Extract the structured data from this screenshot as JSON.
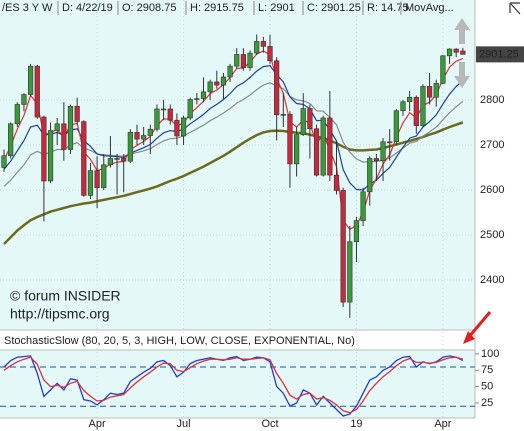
{
  "chart_data": [
    {
      "type": "candlestick",
      "header": [
        "/ES 3 Y W",
        "D: 4/22/19",
        "O: 2908.75",
        "H: 2915.75",
        "L: 2901",
        "C: 2901.25",
        "R: 14.75",
        "MovAvg..."
      ],
      "watermark": [
        "© forum INSIDER",
        "http://tipsmc.org"
      ],
      "categories": [
        null,
        null,
        null,
        null,
        null,
        null,
        null,
        null,
        null,
        null,
        null,
        null,
        null,
        null,
        "Apr",
        null,
        null,
        null,
        null,
        null,
        null,
        null,
        null,
        null,
        null,
        null,
        null,
        "Jul",
        null,
        null,
        null,
        null,
        null,
        null,
        null,
        null,
        null,
        null,
        null,
        null,
        "Oct",
        null,
        null,
        null,
        null,
        null,
        null,
        null,
        null,
        null,
        null,
        null,
        null,
        "19",
        null,
        null,
        null,
        null,
        null,
        null,
        null,
        null,
        null,
        null,
        null,
        null,
        "Apr",
        null,
        null,
        null
      ],
      "open": [
        2650,
        2676,
        2747,
        2790,
        2812,
        2875,
        2762,
        2620,
        2732,
        2747,
        2690,
        2786,
        2752,
        2588,
        2643,
        2605,
        2656,
        2670,
        2670,
        2664,
        2728,
        2713,
        2721,
        2735,
        2780,
        2780,
        2755,
        2720,
        2760,
        2801,
        2803,
        2818,
        2840,
        2833,
        2851,
        2875,
        2901,
        2872,
        2904,
        2930,
        2919,
        2887,
        2767,
        2768,
        2658,
        2723,
        2781,
        2736,
        2633,
        2760,
        2633,
        2599,
        2351,
        2485,
        2532,
        2596,
        2670,
        2665,
        2707,
        2707,
        2776,
        2796,
        2806,
        2743,
        2830,
        2806,
        2837,
        2898,
        2913,
        2908.75
      ],
      "high": [
        2690,
        2750,
        2795,
        2815,
        2880,
        2878,
        2765,
        2750,
        2760,
        2795,
        2790,
        2805,
        2755,
        2660,
        2675,
        2680,
        2720,
        2680,
        2680,
        2735,
        2745,
        2740,
        2745,
        2790,
        2800,
        2790,
        2770,
        2765,
        2805,
        2815,
        2850,
        2845,
        2865,
        2860,
        2880,
        2915,
        2915,
        2910,
        2945,
        2940,
        2945,
        2895,
        2815,
        2775,
        2740,
        2815,
        2790,
        2745,
        2765,
        2820,
        2710,
        2605,
        2520,
        2540,
        2605,
        2675,
        2680,
        2715,
        2735,
        2780,
        2800,
        2820,
        2810,
        2835,
        2860,
        2845,
        2900,
        2915,
        2915,
        2915.75
      ],
      "low": [
        2640,
        2670,
        2740,
        2775,
        2808,
        2758,
        2530,
        2615,
        2700,
        2665,
        2680,
        2745,
        2585,
        2580,
        2560,
        2600,
        2650,
        2590,
        2595,
        2660,
        2700,
        2700,
        2680,
        2730,
        2755,
        2745,
        2700,
        2700,
        2755,
        2790,
        2795,
        2800,
        2825,
        2800,
        2840,
        2870,
        2865,
        2865,
        2900,
        2905,
        2880,
        2710,
        2740,
        2605,
        2630,
        2720,
        2670,
        2630,
        2630,
        2620,
        2590,
        2340,
        2316,
        2440,
        2520,
        2565,
        2620,
        2620,
        2665,
        2700,
        2765,
        2775,
        2725,
        2740,
        2790,
        2785,
        2835,
        2880,
        2895,
        2901
      ],
      "close": [
        2676,
        2747,
        2790,
        2812,
        2875,
        2762,
        2620,
        2732,
        2747,
        2690,
        2786,
        2752,
        2588,
        2643,
        2605,
        2656,
        2670,
        2670,
        2664,
        2728,
        2713,
        2721,
        2735,
        2780,
        2780,
        2755,
        2720,
        2760,
        2801,
        2803,
        2818,
        2840,
        2833,
        2851,
        2875,
        2901,
        2872,
        2904,
        2930,
        2919,
        2887,
        2767,
        2768,
        2658,
        2723,
        2781,
        2736,
        2633,
        2760,
        2633,
        2599,
        2351,
        2485,
        2532,
        2596,
        2670,
        2665,
        2707,
        2707,
        2776,
        2796,
        2806,
        2743,
        2830,
        2806,
        2837,
        2898,
        2913,
        2906,
        2901.25
      ],
      "up_color": "#3a9a3a",
      "down_color": "#c8283c",
      "series": [
        {
          "color": "#6b6b1e",
          "values": [
            2480,
            2495,
            2510,
            2522,
            2533,
            2540,
            2546,
            2552,
            2556,
            2560,
            2564,
            2567,
            2570,
            2572,
            2575,
            2578,
            2581,
            2584,
            2587,
            2591,
            2595,
            2599,
            2603,
            2608,
            2614,
            2620,
            2625,
            2631,
            2638,
            2645,
            2652,
            2660,
            2668,
            2676,
            2685,
            2695,
            2705,
            2714,
            2722,
            2728,
            2731,
            2732,
            2731,
            2729,
            2727,
            2726,
            2723,
            2719,
            2715,
            2710,
            2704,
            2696,
            2690,
            2688,
            2688,
            2689,
            2690,
            2693,
            2697,
            2701,
            2705,
            2709,
            2713,
            2718,
            2723,
            2728,
            2734,
            2740,
            2745,
            2750
          ]
        },
        {
          "color": "#8a8a8a",
          "values": [
            2608,
            2622,
            2639,
            2656,
            2678,
            2686,
            2679,
            2684,
            2690,
            2690,
            2700,
            2705,
            2693,
            2688,
            2680,
            2678,
            2677,
            2676,
            2675,
            2680,
            2683,
            2687,
            2692,
            2701,
            2709,
            2714,
            2715,
            2720,
            2728,
            2736,
            2744,
            2754,
            2762,
            2771,
            2781,
            2793,
            2801,
            2811,
            2823,
            2833,
            2838,
            2831,
            2825,
            2808,
            2800,
            2798,
            2792,
            2776,
            2775,
            2761,
            2745,
            2706,
            2684,
            2669,
            2662,
            2663,
            2663,
            2667,
            2671,
            2682,
            2693,
            2704,
            2708,
            2720,
            2729,
            2740,
            2756,
            2772,
            2785,
            2797
          ]
        },
        {
          "color": "#1f3fa0",
          "values": [
            2646,
            2664,
            2687,
            2710,
            2740,
            2744,
            2722,
            2724,
            2728,
            2721,
            2733,
            2736,
            2709,
            2697,
            2680,
            2676,
            2675,
            2674,
            2672,
            2682,
            2688,
            2694,
            2701,
            2715,
            2727,
            2732,
            2730,
            2735,
            2747,
            2757,
            2768,
            2781,
            2790,
            2801,
            2814,
            2830,
            2838,
            2850,
            2864,
            2874,
            2876,
            2856,
            2840,
            2807,
            2792,
            2790,
            2780,
            2754,
            2755,
            2733,
            2709,
            2645,
            2616,
            2601,
            2600,
            2613,
            2622,
            2637,
            2650,
            2673,
            2695,
            2715,
            2720,
            2740,
            2752,
            2767,
            2791,
            2813,
            2830,
            2843
          ]
        },
        {
          "color": "#e0303a",
          "values": [
            2666,
            2698,
            2735,
            2766,
            2810,
            2791,
            2723,
            2727,
            2735,
            2717,
            2745,
            2748,
            2684,
            2668,
            2643,
            2648,
            2657,
            2662,
            2663,
            2689,
            2699,
            2708,
            2719,
            2743,
            2758,
            2757,
            2742,
            2749,
            2770,
            2783,
            2797,
            2814,
            2822,
            2834,
            2850,
            2870,
            2871,
            2884,
            2902,
            2909,
            2900,
            2847,
            2815,
            2752,
            2740,
            2756,
            2748,
            2702,
            2725,
            2688,
            2652,
            2532,
            2513,
            2521,
            2551,
            2599,
            2625,
            2658,
            2678,
            2717,
            2749,
            2772,
            2760,
            2788,
            2795,
            2812,
            2846,
            2873,
            2886,
            2892
          ]
        }
      ],
      "ylim": [
        2289,
        3022
      ],
      "yticks": [
        2400,
        2500,
        2600,
        2700,
        2800
      ],
      "grid": true
    },
    {
      "type": "line",
      "title": "StochasticSlow (80, 20, 5, 3, HIGH, LOW, CLOSE, EXPONENTIAL, No)",
      "series": [
        {
          "color": "#1f3fcc",
          "values": [
            80,
            90,
            95,
            96,
            97,
            70,
            35,
            45,
            55,
            45,
            62,
            60,
            30,
            28,
            22,
            30,
            40,
            38,
            40,
            58,
            65,
            72,
            78,
            88,
            90,
            82,
            65,
            72,
            85,
            90,
            92,
            94,
            92,
            90,
            94,
            96,
            90,
            92,
            95,
            94,
            88,
            50,
            40,
            20,
            25,
            45,
            40,
            22,
            35,
            25,
            15,
            5,
            8,
            20,
            40,
            60,
            65,
            75,
            80,
            90,
            95,
            96,
            80,
            88,
            85,
            88,
            95,
            97,
            95,
            90
          ]
        },
        {
          "color": "#e0303a",
          "values": [
            75,
            82,
            88,
            92,
            95,
            84,
            60,
            50,
            52,
            49,
            55,
            58,
            44,
            35,
            28,
            29,
            34,
            36,
            38,
            48,
            57,
            65,
            72,
            80,
            86,
            85,
            75,
            73,
            79,
            85,
            89,
            92,
            92,
            91,
            92,
            94,
            92,
            92,
            93,
            94,
            91,
            70,
            55,
            37,
            31,
            38,
            40,
            31,
            33,
            29,
            22,
            13,
            10,
            15,
            28,
            44,
            55,
            65,
            73,
            82,
            89,
            93,
            87,
            87,
            86,
            87,
            91,
            94,
            95,
            92
          ]
        }
      ],
      "levels": [
        80,
        20
      ],
      "ylim": [
        2,
        106
      ],
      "yticks": [
        25,
        50,
        75,
        100
      ]
    }
  ]
}
